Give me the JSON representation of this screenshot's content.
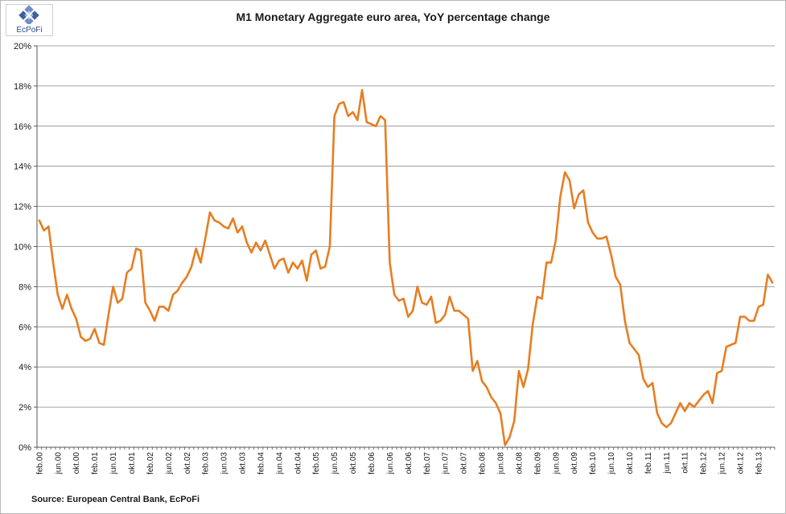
{
  "logo": {
    "text": "EcPoFi"
  },
  "source": "Source: European Central Bank, EcPoFi",
  "colors": {
    "line": "#e67e22",
    "grid": "#888888",
    "axis": "#555555"
  },
  "chart_data": {
    "type": "line",
    "title": "M1 Monetary Aggregate euro area, YoY percentage change",
    "xlabel": "",
    "ylabel": "",
    "ylim": [
      0,
      20
    ],
    "y_ticks": [
      0,
      2,
      4,
      6,
      8,
      10,
      12,
      14,
      16,
      18,
      20
    ],
    "y_tick_labels": [
      "0%",
      "2%",
      "4%",
      "6%",
      "8%",
      "10%",
      "12%",
      "14%",
      "16%",
      "18%",
      "20%"
    ],
    "x_tick_labels": [
      "feb.00",
      "jun.00",
      "okt.00",
      "feb.01",
      "jun.01",
      "okt.01",
      "feb.02",
      "jun.02",
      "okt.02",
      "feb.03",
      "jun.03",
      "okt.03",
      "feb.04",
      "jun.04",
      "okt.04",
      "feb.05",
      "jun.05",
      "okt.05",
      "feb.06",
      "jun.06",
      "okt.06",
      "feb.07",
      "jun.07",
      "okt.07",
      "feb.08",
      "jun.08",
      "okt.08",
      "feb.09",
      "jun.09",
      "okt.09",
      "feb.10",
      "jun.10",
      "okt.10",
      "feb.11",
      "jun.11",
      "okt.11",
      "feb.12",
      "jun.12",
      "okt.12",
      "feb.13"
    ],
    "grid": true,
    "legend": "none",
    "series": [
      {
        "values": [
          11.3,
          10.8,
          11.0,
          9.2,
          7.6,
          6.9,
          7.6,
          6.9,
          6.4,
          5.5,
          5.3,
          5.4,
          5.9,
          5.2,
          5.1,
          6.6,
          8.0,
          7.2,
          7.4,
          8.7,
          8.9,
          9.9,
          9.8,
          7.2,
          6.8,
          6.3,
          7.0,
          7.0,
          6.8,
          7.6,
          7.8,
          8.2,
          8.5,
          9.0,
          9.9,
          9.2,
          10.4,
          11.7,
          11.3,
          11.2,
          11.0,
          10.9,
          11.4,
          10.7,
          11.0,
          10.2,
          9.7,
          10.2,
          9.8,
          10.3,
          9.6,
          8.9,
          9.3,
          9.4,
          8.7,
          9.2,
          8.9,
          9.3,
          8.3,
          9.6,
          9.8,
          8.9,
          9.0,
          10.0,
          16.5,
          17.1,
          17.2,
          16.5,
          16.7,
          16.3,
          17.8,
          16.2,
          16.1,
          16.0,
          16.5,
          16.3,
          9.2,
          7.6,
          7.3,
          7.4,
          6.5,
          6.8,
          8.0,
          7.2,
          7.1,
          7.5,
          6.2,
          6.3,
          6.6,
          7.5,
          6.8,
          6.8,
          6.6,
          6.4,
          3.8,
          4.3,
          3.3,
          3.0,
          2.5,
          2.2,
          1.7,
          0.1,
          0.5,
          1.3,
          3.8,
          3.0,
          3.9,
          6.1,
          7.5,
          7.4,
          9.2,
          9.2,
          10.3,
          12.5,
          13.7,
          13.3,
          11.9,
          12.6,
          12.8,
          11.2,
          10.7,
          10.4,
          10.4,
          10.5,
          9.6,
          8.5,
          8.1,
          6.3,
          5.2,
          4.9,
          4.6,
          3.4,
          3.0,
          3.2,
          1.7,
          1.2,
          1.0,
          1.2,
          1.7,
          2.2,
          1.8,
          2.2,
          2.0,
          2.3,
          2.6,
          2.8,
          2.2,
          3.7,
          3.8,
          5.0,
          5.1,
          5.2,
          6.5,
          6.5,
          6.3,
          6.3,
          7.0,
          7.1,
          8.6,
          8.2
        ]
      }
    ]
  }
}
